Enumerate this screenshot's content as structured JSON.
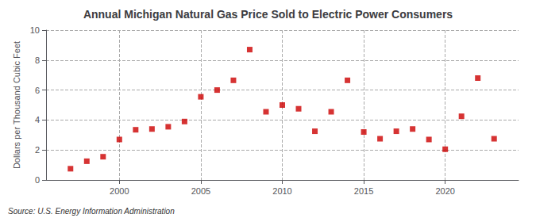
{
  "chart_data": {
    "type": "scatter",
    "title": "Annual Michigan Natural Gas Price Sold to Electric Power Consumers",
    "ylabel": "Dollars per Thousand Cubic Feet",
    "annotations": [
      "Source: U.S. Energy Information Administration"
    ],
    "x": [
      1997,
      1998,
      1999,
      2000,
      2001,
      2002,
      2003,
      2004,
      2005,
      2006,
      2007,
      2008,
      2009,
      2010,
      2011,
      2012,
      2013,
      2014,
      2015,
      2016,
      2017,
      2018,
      2019,
      2020,
      2021,
      2022,
      2023
    ],
    "values": [
      0.75,
      1.25,
      1.55,
      2.7,
      3.35,
      3.4,
      3.55,
      3.9,
      5.55,
      6.0,
      6.65,
      8.7,
      4.55,
      5.0,
      4.75,
      3.25,
      4.55,
      6.65,
      3.2,
      2.75,
      3.25,
      3.4,
      2.7,
      2.05,
      4.25,
      6.8,
      2.75
    ],
    "color": "#cc0000",
    "marker": "square",
    "xlim": [
      1995.5,
      2024.5
    ],
    "xticks": [
      2000,
      2005,
      2010,
      2015,
      2020
    ],
    "ylim": [
      0,
      10
    ],
    "yticks": [
      0,
      2,
      4,
      6,
      8,
      10
    ],
    "grid": true
  }
}
